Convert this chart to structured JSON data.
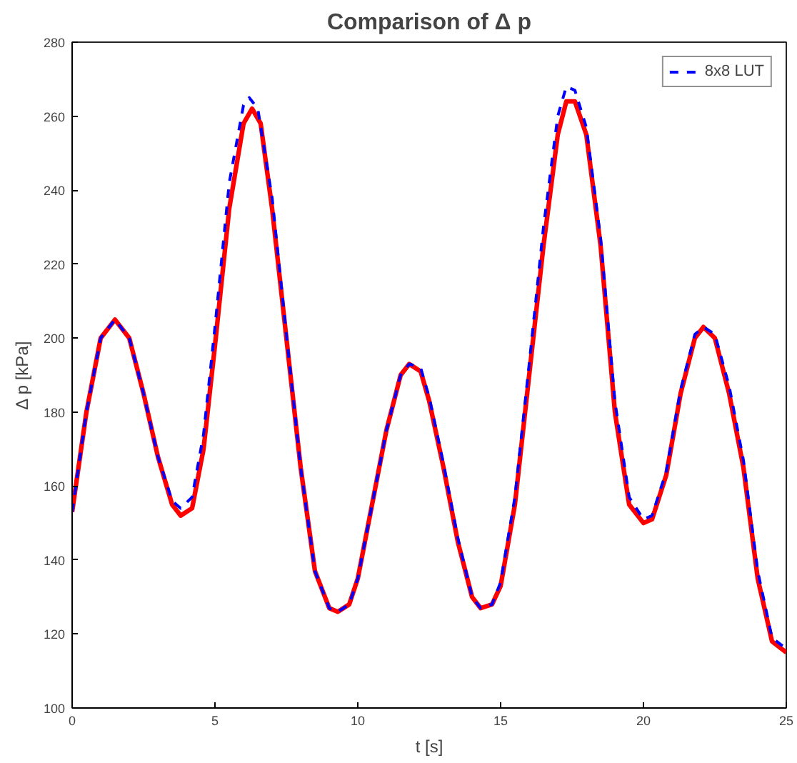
{
  "chart_data": {
    "type": "line",
    "title": "Comparison of Δ p",
    "xlabel": "t [s]",
    "ylabel": "Δ p [kPa]",
    "xlim": [
      0,
      25
    ],
    "ylim": [
      100,
      280
    ],
    "xticks": [
      0,
      5,
      10,
      15,
      20,
      25
    ],
    "yticks": [
      100,
      120,
      140,
      160,
      180,
      200,
      220,
      240,
      260,
      280
    ],
    "grid": false,
    "legend": "top right",
    "series": [
      {
        "color": "#ff0000",
        "line_style": "solid",
        "x": [
          0,
          0.5,
          1,
          1.5,
          2,
          2.5,
          3,
          3.5,
          3.8,
          4.2,
          4.6,
          5,
          5.5,
          6,
          6.3,
          6.6,
          7,
          7.5,
          8,
          8.5,
          9,
          9.3,
          9.7,
          10,
          10.5,
          11,
          11.5,
          11.8,
          12.2,
          12.5,
          13,
          13.5,
          14,
          14.3,
          14.7,
          15,
          15.5,
          16,
          16.5,
          17,
          17.3,
          17.6,
          18,
          18.5,
          19,
          19.5,
          20,
          20.3,
          20.8,
          21.3,
          21.8,
          22.1,
          22.5,
          23,
          23.5,
          24,
          24.5,
          25
        ],
        "values": [
          153,
          180,
          200,
          205,
          200,
          185,
          168,
          155,
          152,
          154,
          170,
          198,
          235,
          258,
          262,
          258,
          235,
          200,
          165,
          137,
          127,
          126,
          128,
          135,
          155,
          175,
          190,
          193,
          191,
          183,
          165,
          145,
          130,
          127,
          128,
          133,
          155,
          190,
          225,
          255,
          264,
          264,
          255,
          225,
          180,
          155,
          150,
          151,
          163,
          185,
          200,
          203,
          200,
          185,
          165,
          135,
          118,
          115
        ]
      },
      {
        "name": "8x8 LUT",
        "color": "#0000ff",
        "line_style": "dashed",
        "x": [
          0,
          0.5,
          1,
          1.5,
          2,
          2.5,
          3,
          3.5,
          3.8,
          4.2,
          4.6,
          5,
          5.5,
          6,
          6.2,
          6.5,
          7,
          7.5,
          8,
          8.5,
          9,
          9.3,
          9.7,
          10,
          10.5,
          11,
          11.5,
          11.8,
          12.2,
          12.5,
          13,
          13.5,
          14,
          14.3,
          14.7,
          15,
          15.5,
          16,
          16.5,
          17,
          17.3,
          17.6,
          18,
          18.5,
          19,
          19.5,
          20,
          20.3,
          20.8,
          21.3,
          21.8,
          22.1,
          22.5,
          23,
          23.5,
          24,
          24.5,
          25
        ],
        "values": [
          153,
          180,
          200,
          205,
          200,
          185,
          168,
          156,
          154,
          157,
          174,
          203,
          242,
          263,
          265,
          262,
          238,
          201,
          165,
          137,
          127,
          126,
          128,
          135,
          155,
          175,
          190,
          193,
          192,
          184,
          166,
          146,
          130,
          127,
          128,
          134,
          157,
          193,
          230,
          260,
          268,
          267,
          257,
          227,
          183,
          157,
          151,
          152,
          164,
          186,
          201,
          203,
          201,
          187,
          167,
          137,
          119,
          116
        ]
      }
    ]
  }
}
